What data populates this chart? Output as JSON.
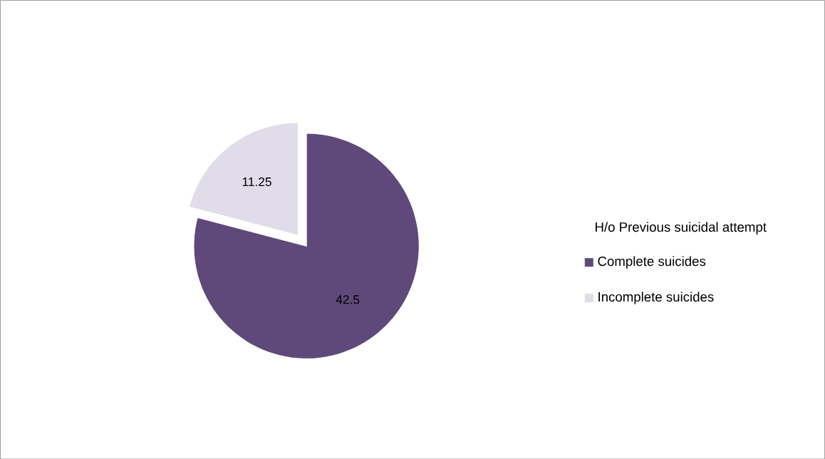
{
  "chart_data": {
    "type": "pie",
    "legend_title": "H/o Previous suicidal attempt",
    "categories": [
      "Complete suicides",
      "Incomplete suicides"
    ],
    "values": [
      42.5,
      11.25
    ],
    "colors": [
      "#5f497a",
      "#e0dcea"
    ],
    "data_labels": true,
    "legend": "right"
  }
}
